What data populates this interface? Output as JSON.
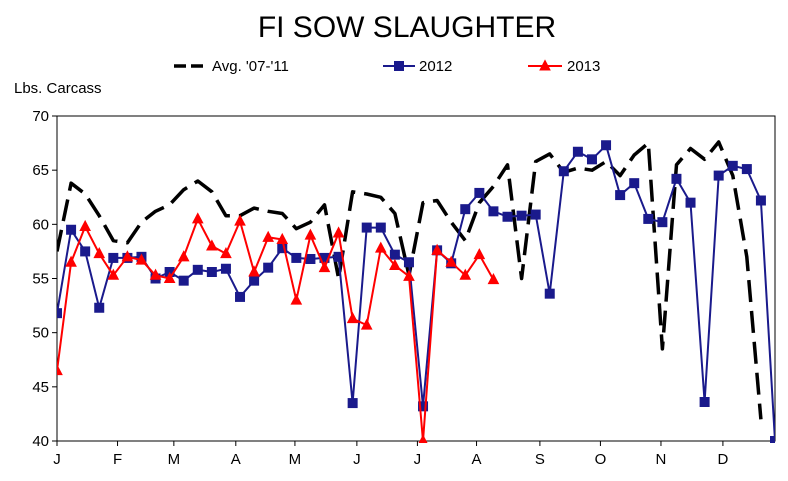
{
  "chart_data": {
    "type": "line",
    "title": "FI SOW SLAUGHTER",
    "ylabel": "Lbs. Carcass",
    "xlabel": "",
    "ylim": [
      40,
      70
    ],
    "y_ticks": [
      40,
      45,
      50,
      55,
      60,
      65,
      70
    ],
    "x_tick_labels": [
      "J",
      "F",
      "M",
      "A",
      "M",
      "J",
      "J",
      "A",
      "S",
      "O",
      "N",
      "D"
    ],
    "x_tick_weeks": [
      1,
      5.3,
      9.3,
      13.7,
      17.9,
      22.3,
      26.6,
      30.8,
      35.3,
      39.6,
      43.9,
      48.3
    ],
    "x_range": [
      1,
      52
    ],
    "grid": false,
    "legend_position": "top",
    "series": [
      {
        "name": "Avg. '07-'11",
        "color": "#000000",
        "style": "dashed",
        "marker": "none",
        "x": [
          1,
          2,
          3,
          4,
          5,
          6,
          7,
          8,
          9,
          10,
          11,
          12,
          13,
          14,
          15,
          16,
          17,
          18,
          19,
          20,
          21,
          22,
          23,
          24,
          25,
          26,
          27,
          28,
          29,
          30,
          31,
          32,
          33,
          34,
          35,
          36,
          37,
          38,
          39,
          40,
          41,
          42,
          43,
          44,
          45,
          46,
          47,
          48,
          49,
          50,
          51,
          52
        ],
        "values": [
          57.5,
          63.8,
          62.8,
          60.8,
          58.5,
          58.3,
          60.2,
          61.2,
          61.8,
          63.2,
          64.0,
          63.0,
          60.8,
          60.8,
          61.5,
          61.2,
          61.0,
          59.6,
          60.2,
          61.8,
          55.0,
          63.0,
          62.8,
          62.5,
          61.0,
          55.3,
          62.0,
          62.2,
          60.2,
          58.5,
          62.0,
          63.5,
          65.5,
          55.0,
          65.8,
          66.5,
          64.8,
          65.2,
          65.0,
          65.8,
          64.5,
          66.4,
          67.5,
          48.5,
          65.5,
          67.0,
          66.0,
          67.6,
          64.5,
          57.0,
          42.0,
          null
        ]
      },
      {
        "name": "2012",
        "color": "#1a1a8c",
        "style": "solid",
        "marker": "square",
        "x": [
          1,
          2,
          3,
          4,
          5,
          6,
          7,
          8,
          9,
          10,
          11,
          12,
          13,
          14,
          15,
          16,
          17,
          18,
          19,
          20,
          21,
          22,
          23,
          24,
          25,
          26,
          27,
          28,
          29,
          30,
          31,
          32,
          33,
          34,
          35,
          36,
          37,
          38,
          39,
          40,
          41,
          42,
          43,
          44,
          45,
          46,
          47,
          48,
          49,
          50,
          51,
          52
        ],
        "values": [
          51.8,
          59.5,
          57.5,
          52.3,
          56.9,
          56.9,
          57.0,
          55.0,
          55.6,
          54.8,
          55.8,
          55.6,
          55.9,
          53.3,
          54.8,
          56.0,
          57.8,
          56.9,
          56.8,
          56.9,
          57.0,
          43.5,
          59.7,
          59.7,
          57.2,
          56.5,
          43.2,
          57.6,
          56.4,
          61.4,
          62.9,
          61.2,
          60.7,
          60.8,
          60.9,
          53.6,
          64.9,
          66.7,
          66.0,
          67.3,
          62.7,
          63.8,
          60.5,
          60.2,
          64.2,
          62.0,
          43.6,
          64.5,
          65.4,
          65.1,
          62.2,
          40.0
        ]
      },
      {
        "name": "2013",
        "color": "#ff0000",
        "style": "solid",
        "marker": "triangle",
        "x": [
          1,
          2,
          3,
          4,
          5,
          6,
          7,
          8,
          9,
          10,
          11,
          12,
          13,
          14,
          15,
          16,
          17,
          18,
          19,
          20,
          21,
          22,
          23,
          24,
          25,
          26,
          27,
          28,
          29,
          30,
          31,
          32
        ],
        "values": [
          46.5,
          56.5,
          59.8,
          57.3,
          55.3,
          57.0,
          56.7,
          55.3,
          55.0,
          57.0,
          60.5,
          58.0,
          57.3,
          60.3,
          55.6,
          58.8,
          58.6,
          53.0,
          59.0,
          56.0,
          59.2,
          51.3,
          50.7,
          57.8,
          56.2,
          55.2,
          40.0,
          57.6,
          56.5,
          55.3,
          57.2,
          54.9
        ]
      }
    ]
  }
}
